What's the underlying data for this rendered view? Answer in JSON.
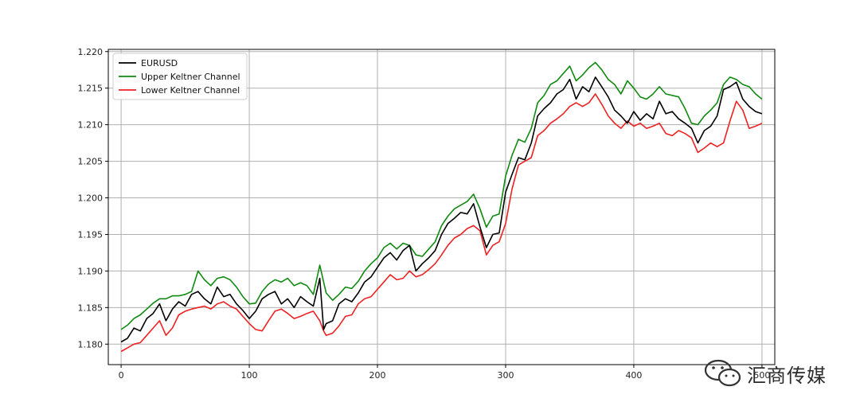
{
  "chart_data": {
    "type": "line",
    "title": "",
    "xlabel": "",
    "ylabel": "",
    "xlim": [
      -10,
      510
    ],
    "ylim": [
      1.1772,
      1.2203
    ],
    "x_ticks": [
      0,
      100,
      200,
      300,
      400,
      500
    ],
    "x_tick_labels": [
      "0",
      "100",
      "200",
      "300",
      "400",
      "500"
    ],
    "y_ticks": [
      1.18,
      1.185,
      1.19,
      1.195,
      1.2,
      1.205,
      1.21,
      1.215,
      1.22
    ],
    "y_tick_labels": [
      "1.180",
      "1.185",
      "1.190",
      "1.195",
      "1.200",
      "1.205",
      "1.210",
      "1.215",
      "1.220"
    ],
    "grid": true,
    "legend_position": "top-left",
    "series": [
      {
        "name": "EURUSD",
        "color": "#000000",
        "x": [
          0,
          5,
          10,
          15,
          20,
          25,
          30,
          35,
          40,
          45,
          50,
          55,
          60,
          65,
          70,
          75,
          80,
          85,
          90,
          95,
          100,
          105,
          110,
          115,
          120,
          125,
          130,
          135,
          140,
          145,
          150,
          155,
          158,
          160,
          165,
          170,
          175,
          180,
          185,
          190,
          195,
          200,
          205,
          210,
          215,
          220,
          225,
          230,
          235,
          240,
          245,
          250,
          255,
          260,
          265,
          270,
          275,
          280,
          285,
          290,
          295,
          300,
          305,
          310,
          315,
          320,
          325,
          330,
          335,
          340,
          345,
          350,
          355,
          360,
          365,
          370,
          375,
          380,
          385,
          390,
          395,
          400,
          405,
          410,
          415,
          420,
          425,
          430,
          435,
          440,
          445,
          450,
          455,
          460,
          465,
          470,
          475,
          480,
          485,
          490,
          495,
          500
        ],
        "y": [
          1.1803,
          1.1808,
          1.1822,
          1.1818,
          1.1835,
          1.1842,
          1.1855,
          1.1832,
          1.1848,
          1.1858,
          1.1852,
          1.1868,
          1.1872,
          1.1862,
          1.1855,
          1.1878,
          1.1865,
          1.1868,
          1.1855,
          1.1846,
          1.1835,
          1.1845,
          1.1862,
          1.1868,
          1.1872,
          1.1855,
          1.1862,
          1.185,
          1.1865,
          1.1858,
          1.1852,
          1.189,
          1.182,
          1.1828,
          1.1832,
          1.1855,
          1.1862,
          1.1858,
          1.187,
          1.1885,
          1.1892,
          1.1905,
          1.1918,
          1.1925,
          1.1915,
          1.1928,
          1.1935,
          1.19,
          1.191,
          1.1918,
          1.1928,
          1.195,
          1.1965,
          1.1972,
          1.198,
          1.1978,
          1.1992,
          1.196,
          1.1932,
          1.195,
          1.1952,
          1.2008,
          1.2032,
          1.2055,
          1.2052,
          1.2075,
          1.2112,
          1.2122,
          1.213,
          1.2142,
          1.2148,
          1.2162,
          1.2135,
          1.2152,
          1.2145,
          1.2165,
          1.2152,
          1.2138,
          1.212,
          1.2112,
          1.2102,
          1.2118,
          1.2106,
          1.2115,
          1.2108,
          1.2132,
          1.2115,
          1.2118,
          1.2108,
          1.2102,
          1.2095,
          1.2075,
          1.2092,
          1.2098,
          1.2112,
          1.2148,
          1.2152,
          1.2158,
          1.2135,
          1.2125,
          1.2118,
          1.2115
        ]
      },
      {
        "name": "Upper Keltner Channel",
        "color": "#108a10",
        "x": [
          0,
          5,
          10,
          15,
          20,
          25,
          30,
          35,
          40,
          45,
          50,
          55,
          60,
          65,
          70,
          75,
          80,
          85,
          90,
          95,
          100,
          105,
          110,
          115,
          120,
          125,
          130,
          135,
          140,
          145,
          150,
          155,
          158,
          160,
          165,
          170,
          175,
          180,
          185,
          190,
          195,
          200,
          205,
          210,
          215,
          220,
          225,
          230,
          235,
          240,
          245,
          250,
          255,
          260,
          265,
          270,
          275,
          280,
          285,
          290,
          295,
          300,
          305,
          310,
          315,
          320,
          325,
          330,
          335,
          340,
          345,
          350,
          355,
          360,
          365,
          370,
          375,
          380,
          385,
          390,
          395,
          400,
          405,
          410,
          415,
          420,
          425,
          430,
          435,
          440,
          445,
          450,
          455,
          460,
          465,
          470,
          475,
          480,
          485,
          490,
          495,
          500
        ],
        "y": [
          1.182,
          1.1826,
          1.1835,
          1.184,
          1.1848,
          1.1856,
          1.1862,
          1.1862,
          1.1866,
          1.1866,
          1.1868,
          1.1872,
          1.19,
          1.1888,
          1.188,
          1.189,
          1.1892,
          1.1888,
          1.1878,
          1.1865,
          1.1855,
          1.1856,
          1.1872,
          1.1882,
          1.1888,
          1.1885,
          1.189,
          1.188,
          1.1884,
          1.188,
          1.1868,
          1.1908,
          1.1885,
          1.187,
          1.186,
          1.1868,
          1.1878,
          1.1876,
          1.1886,
          1.19,
          1.191,
          1.1918,
          1.1932,
          1.1938,
          1.193,
          1.1938,
          1.1935,
          1.1922,
          1.192,
          1.193,
          1.194,
          1.1962,
          1.1975,
          1.1985,
          1.199,
          1.1995,
          1.2005,
          1.1985,
          1.196,
          1.1975,
          1.1978,
          1.203,
          1.2058,
          1.208,
          1.2076,
          1.2095,
          1.213,
          1.214,
          1.2155,
          1.216,
          1.217,
          1.218,
          1.216,
          1.2168,
          1.2178,
          1.2185,
          1.2175,
          1.2162,
          1.2155,
          1.2142,
          1.216,
          1.215,
          1.2138,
          1.2135,
          1.2142,
          1.2152,
          1.2142,
          1.214,
          1.2138,
          1.2122,
          1.2102,
          1.21,
          1.2112,
          1.212,
          1.213,
          1.2155,
          1.2165,
          1.2162,
          1.2155,
          1.2152,
          1.2142,
          1.2135
        ]
      },
      {
        "name": "Lower Keltner Channel",
        "color": "#ee2222",
        "x": [
          0,
          5,
          10,
          15,
          20,
          25,
          30,
          35,
          40,
          45,
          50,
          55,
          60,
          65,
          70,
          75,
          80,
          85,
          90,
          95,
          100,
          105,
          110,
          115,
          120,
          125,
          130,
          135,
          140,
          145,
          150,
          155,
          158,
          160,
          165,
          170,
          175,
          180,
          185,
          190,
          195,
          200,
          205,
          210,
          215,
          220,
          225,
          230,
          235,
          240,
          245,
          250,
          255,
          260,
          265,
          270,
          275,
          280,
          285,
          290,
          295,
          300,
          305,
          310,
          315,
          320,
          325,
          330,
          335,
          340,
          345,
          350,
          355,
          360,
          365,
          370,
          375,
          380,
          385,
          390,
          395,
          400,
          405,
          410,
          415,
          420,
          425,
          430,
          435,
          440,
          445,
          450,
          455,
          460,
          465,
          470,
          475,
          480,
          485,
          490,
          495,
          500
        ],
        "y": [
          1.179,
          1.1795,
          1.18,
          1.1802,
          1.1812,
          1.1822,
          1.1832,
          1.1812,
          1.1822,
          1.184,
          1.1845,
          1.1848,
          1.185,
          1.1852,
          1.1848,
          1.1855,
          1.1858,
          1.1852,
          1.1848,
          1.1838,
          1.1828,
          1.182,
          1.1818,
          1.1832,
          1.1845,
          1.1848,
          1.1842,
          1.1835,
          1.1838,
          1.1842,
          1.1845,
          1.1832,
          1.1818,
          1.1812,
          1.1815,
          1.1825,
          1.1838,
          1.184,
          1.1855,
          1.1862,
          1.1865,
          1.1875,
          1.1885,
          1.1895,
          1.1888,
          1.189,
          1.19,
          1.1892,
          1.1895,
          1.1902,
          1.191,
          1.1922,
          1.1935,
          1.1945,
          1.195,
          1.1958,
          1.1962,
          1.1955,
          1.1922,
          1.1935,
          1.194,
          1.1965,
          1.2012,
          1.2045,
          1.205,
          1.2055,
          1.2085,
          1.2092,
          1.2102,
          1.2108,
          1.2115,
          1.2125,
          1.213,
          1.2125,
          1.213,
          1.2142,
          1.2128,
          1.2112,
          1.2102,
          1.2095,
          1.2105,
          1.2098,
          1.2102,
          1.2095,
          1.2098,
          1.2102,
          1.2088,
          1.2085,
          1.2092,
          1.2088,
          1.2082,
          1.2062,
          1.2068,
          1.2075,
          1.207,
          1.2075,
          1.2105,
          1.2132,
          1.212,
          1.2095,
          1.2098,
          1.2102
        ]
      }
    ]
  },
  "watermark": {
    "text": "汇商传媒",
    "logo_icon": "wechat-icon"
  }
}
